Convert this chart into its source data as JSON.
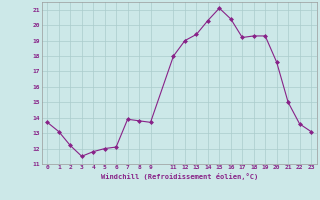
{
  "x": [
    0,
    1,
    2,
    3,
    4,
    5,
    6,
    7,
    8,
    9,
    11,
    12,
    13,
    14,
    15,
    16,
    17,
    18,
    19,
    20,
    21,
    22,
    23
  ],
  "y": [
    13.7,
    13.1,
    12.2,
    11.5,
    11.8,
    12.0,
    12.1,
    13.9,
    13.8,
    13.7,
    18.0,
    19.0,
    19.4,
    20.3,
    21.1,
    20.4,
    19.2,
    19.3,
    19.3,
    17.6,
    15.0,
    13.6,
    13.1
  ],
  "line_color": "#882288",
  "marker": "D",
  "marker_size": 2,
  "bg_color": "#cce8e8",
  "grid_color": "#aacccc",
  "xlabel": "Windchill (Refroidissement éolien,°C)",
  "xlabel_color": "#882288",
  "tick_color": "#882288",
  "ylim": [
    11,
    21.5
  ],
  "xlim": [
    -0.5,
    23.5
  ],
  "yticks": [
    11,
    12,
    13,
    14,
    15,
    16,
    17,
    18,
    19,
    20,
    21
  ],
  "xticks": [
    0,
    1,
    2,
    3,
    4,
    5,
    6,
    7,
    8,
    9,
    11,
    12,
    13,
    14,
    15,
    16,
    17,
    18,
    19,
    20,
    21,
    22,
    23
  ]
}
